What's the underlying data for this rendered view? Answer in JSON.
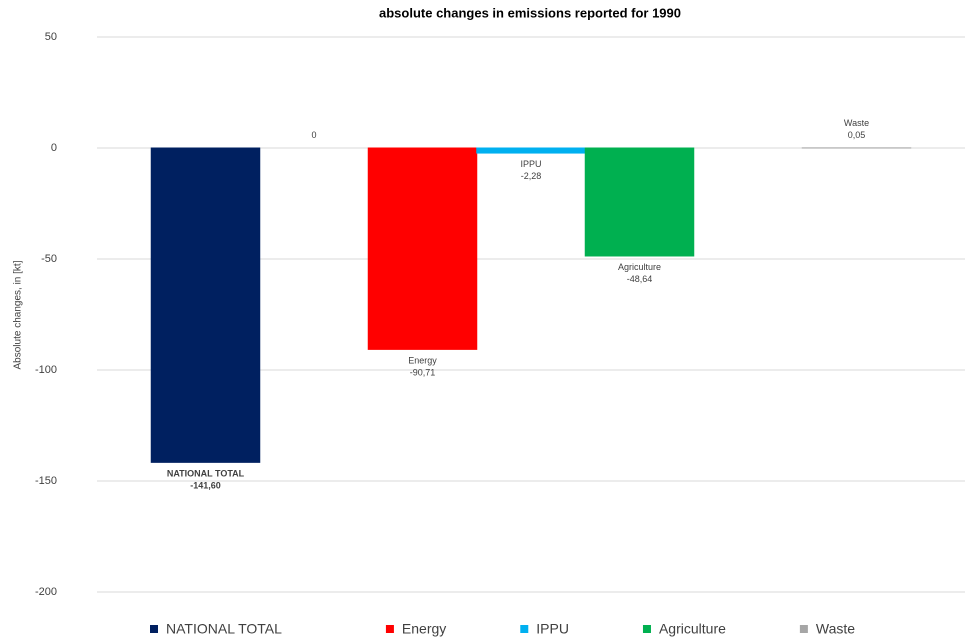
{
  "chart_data": {
    "type": "bar",
    "title": "absolute changes in emissions reported for 1990",
    "y_label": "Absolute changes, in [kt]",
    "categories": [
      "NATIONAL TOTAL",
      null,
      "Energy",
      "IPPU",
      "Agriculture",
      null,
      "Waste"
    ],
    "values": [
      -141.6,
      0,
      -90.71,
      -2.28,
      -48.64,
      null,
      0.05
    ],
    "value_labels": [
      "-141,60",
      "0",
      "-90,71",
      "-2,28",
      "-48,64",
      null,
      "0,05"
    ],
    "colors": [
      "#002060",
      null,
      "#ff0000",
      "#00b0f0",
      "#00b050",
      null,
      "#a6a6a6"
    ],
    "ylim": [
      -200,
      50
    ],
    "yticks": [
      -200,
      -150,
      -100,
      -50,
      0,
      50
    ],
    "grid": true
  }
}
